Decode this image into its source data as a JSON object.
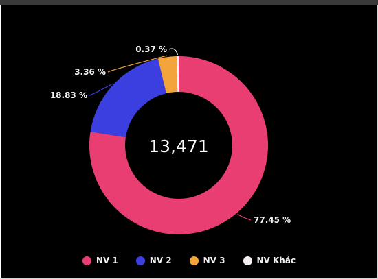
{
  "chart_data": {
    "type": "pie",
    "variant": "donut",
    "total_label": "13,471",
    "series": [
      {
        "name": "NV 1",
        "value": 77.45,
        "label": "77.45 %",
        "color": "#e83e72"
      },
      {
        "name": "NV 2",
        "value": 18.83,
        "label": "18.83 %",
        "color": "#3b3fe0"
      },
      {
        "name": "NV 3",
        "value": 3.36,
        "label": "3.36 %",
        "color": "#f3a43b"
      },
      {
        "name": "NV Khác",
        "value": 0.37,
        "label": "0.37 %",
        "color": "#f5eef2"
      }
    ],
    "legend_position": "bottom",
    "background": "#000000"
  }
}
